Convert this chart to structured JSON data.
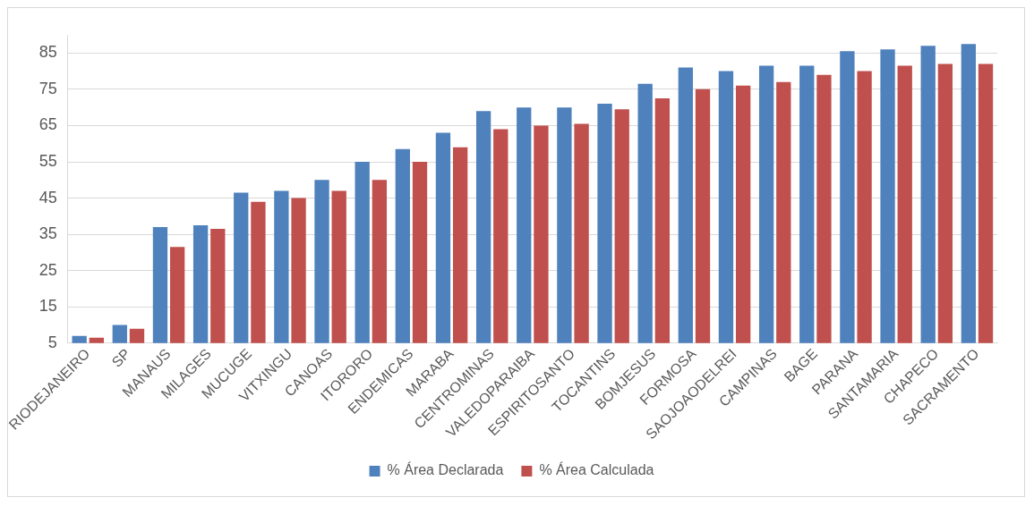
{
  "chart_data": {
    "type": "bar",
    "categories": [
      "RIODEJANEIRO",
      "SP",
      "MANAUS",
      "MILAGES",
      "MUCUGE",
      "VITXINGU",
      "CANOAS",
      "ITORORO",
      "ENDEMICAS",
      "MARABA",
      "CENTROMINAS",
      "VALEDOPARAIBA",
      "ESPIRITOSANTO",
      "TOCANTINS",
      "BOMJESUS",
      "FORMOSA",
      "SAOJOAODELREI",
      "CAMPINAS",
      "BAGE",
      "PARANA",
      "SANTAMARIA",
      "CHAPECO",
      "SACRAMENTO"
    ],
    "series": [
      {
        "name": "% Área Declarada",
        "color": "#4f81bd",
        "values": [
          7,
          10,
          37,
          37.5,
          46.5,
          47,
          50,
          55,
          58.5,
          63,
          69,
          70,
          70,
          71,
          76.5,
          81,
          80,
          81.5,
          81.5,
          85.5,
          86,
          87,
          87.5
        ]
      },
      {
        "name": "% Área Calculada",
        "color": "#c0504d",
        "values": [
          6.5,
          9,
          31.5,
          36.5,
          44,
          45,
          47,
          50,
          55,
          59,
          64,
          65,
          65.5,
          69.5,
          72.5,
          75,
          76,
          77,
          79,
          80,
          81.5,
          82,
          82
        ]
      }
    ],
    "ylim": [
      5,
      90
    ],
    "yticks": [
      5,
      15,
      25,
      35,
      45,
      55,
      65,
      75,
      85
    ],
    "grid": "y",
    "legend": "bottom"
  }
}
